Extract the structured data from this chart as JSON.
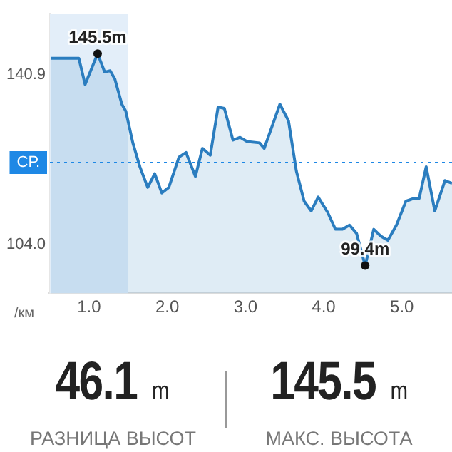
{
  "chart_data": {
    "type": "area",
    "xlabel": "/км",
    "x": [
      0.51,
      0.87,
      0.95,
      1.11,
      1.2,
      1.27,
      1.33,
      1.42,
      1.47,
      1.56,
      1.65,
      1.75,
      1.84,
      1.93,
      2.02,
      2.15,
      2.24,
      2.36,
      2.45,
      2.55,
      2.65,
      2.73,
      2.84,
      2.93,
      3.02,
      3.18,
      3.24,
      3.44,
      3.55,
      3.65,
      3.75,
      3.84,
      3.93,
      4.05,
      4.15,
      4.24,
      4.33,
      4.42,
      4.53,
      4.64,
      4.73,
      4.82,
      4.93,
      5.05,
      5.15,
      5.22,
      5.31,
      5.42,
      5.55,
      5.64
    ],
    "series": [
      {
        "color": "#2b7dbf",
        "values": [
          144.5,
          144.5,
          138.8,
          145.5,
          141.5,
          141.8,
          140.0,
          134.5,
          133.0,
          126.1,
          120.9,
          116.4,
          119.4,
          115.2,
          116.4,
          123.0,
          124.0,
          118.8,
          124.9,
          123.4,
          133.9,
          133.6,
          126.7,
          127.3,
          126.4,
          126.1,
          124.9,
          134.5,
          130.9,
          120.0,
          113.4,
          111.3,
          114.3,
          111.0,
          107.3,
          107.3,
          108.2,
          106.4,
          99.4,
          107.3,
          105.8,
          104.9,
          108.2,
          113.4,
          114.0,
          114.0,
          120.9,
          111.3,
          117.9,
          117.3
        ]
      }
    ],
    "xlim": [
      0.5,
      5.64
    ],
    "ylim": [
      93.4,
      154.2
    ],
    "xticks": [
      {
        "value": 1,
        "label": "1.0"
      },
      {
        "value": 2,
        "label": "2.0"
      },
      {
        "value": 3,
        "label": "3.0"
      },
      {
        "value": 4,
        "label": "4.0"
      },
      {
        "value": 5,
        "label": "5.0"
      }
    ],
    "yticks": [
      {
        "value": 104,
        "label": "104.0"
      },
      140.9
    ],
    "ref_lines": [
      {
        "axis": "y",
        "value": 121.8,
        "label": "СР.",
        "color": "#1e88e5",
        "line_style": "dotted"
      }
    ],
    "bands": [
      {
        "axis": "x",
        "from": 0.5,
        "to": 1.5,
        "color": "#e3eef9"
      }
    ],
    "annotations": [
      {
        "text": "145.5m",
        "x": 1.11,
        "y": 145.5
      },
      {
        "text": "99.4m",
        "x": 4.53,
        "y": 99.4
      },
      "46.1 m",
      "РАЗНИЦА ВЫСОТ",
      "145.5 m",
      "МАКС. ВЫСОТА"
    ],
    "grid": false,
    "legend": false
  }
}
